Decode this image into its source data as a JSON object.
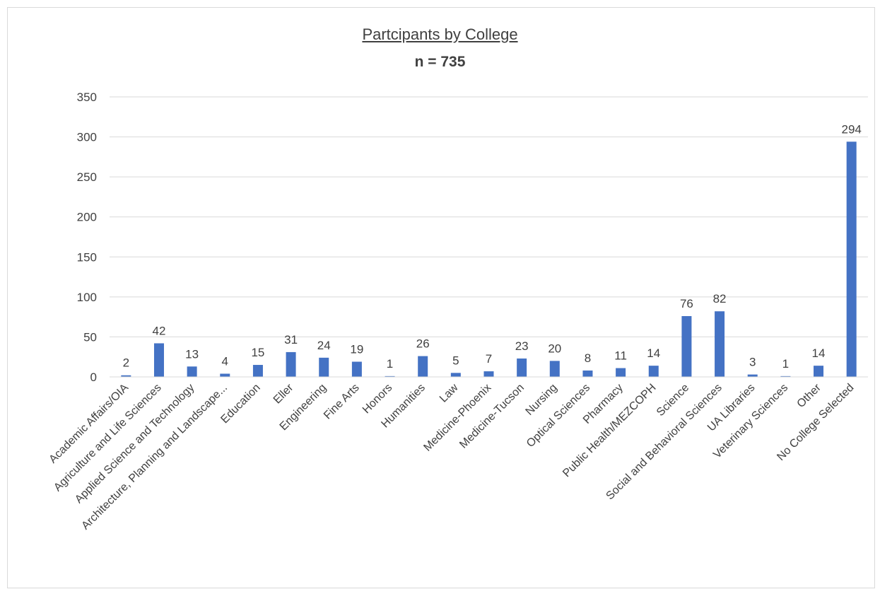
{
  "chart_data": {
    "type": "bar",
    "title": "Partcipants by College",
    "subtitle": "n = 735",
    "xlabel": "",
    "ylabel": "",
    "ylim": [
      0,
      350
    ],
    "yticks": [
      0,
      50,
      100,
      150,
      200,
      250,
      300,
      350
    ],
    "grid": true,
    "legend": "none",
    "bar_color": "#4472c4",
    "categories": [
      "Academic Affairs/OIA",
      "Agriculture and Life Sciences",
      "Applied Science and Technology",
      "Architecture, Planning and Landscape...",
      "Education",
      "Eller",
      "Engineering",
      "Fine Arts",
      "Honors",
      "Humanities",
      "Law",
      "Medicine-Phoenix",
      "Medicine-Tucson",
      "Nursing",
      "Optical Sciences",
      "Pharmacy",
      "Public Health/MEZCOPH",
      "Science",
      "Social and Behavioral Sciences",
      "UA Libraries",
      "Veterinary Sciences",
      "Other",
      "No College Selected"
    ],
    "values": [
      2,
      42,
      13,
      4,
      15,
      31,
      24,
      19,
      1,
      26,
      5,
      7,
      23,
      20,
      8,
      11,
      14,
      76,
      82,
      3,
      1,
      14,
      294
    ]
  }
}
